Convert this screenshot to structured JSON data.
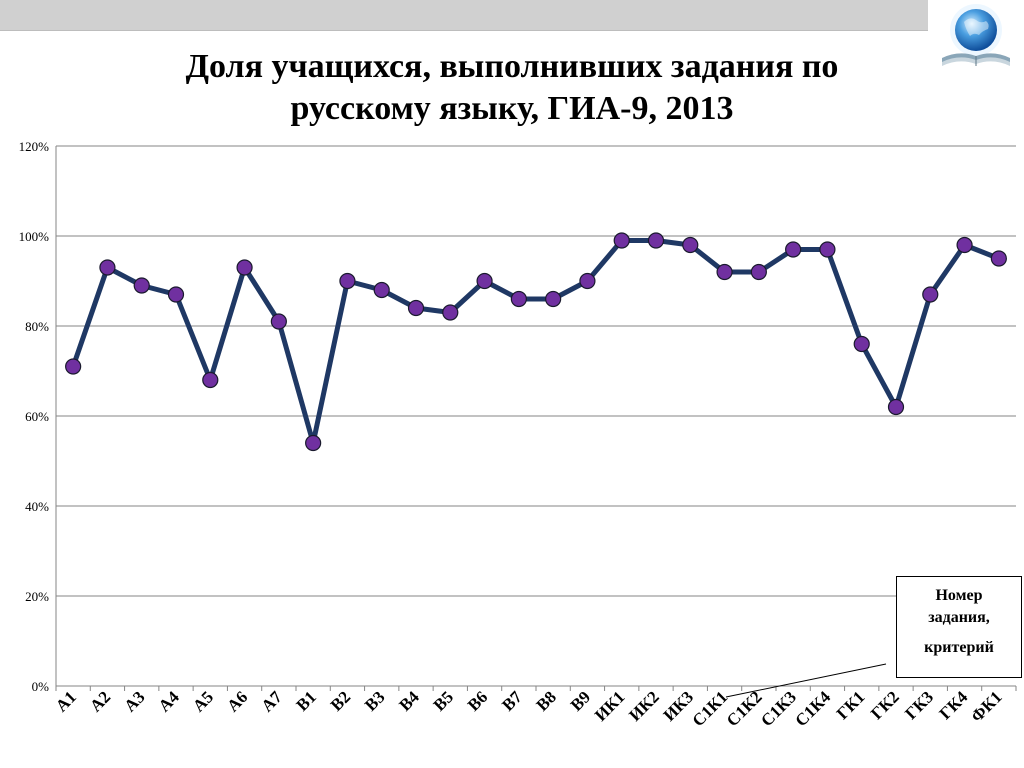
{
  "title_line1": "Доля учащихся, выполнивших задания по",
  "title_line2": "русскому языку, ГИА-9, 2013",
  "annotation": {
    "line1": "Номер",
    "line2": "задания,",
    "line3": "критерий"
  },
  "colors": {
    "line": "#1f3864",
    "marker": "#7030a0",
    "grid": "#868686",
    "top_bar": "#d0d0d0"
  },
  "chart_data": {
    "type": "line",
    "title": "Доля учащихся, выполнивших задания по русскому языку, ГИА-9, 2013",
    "xlabel": "",
    "ylabel": "",
    "ylim": [
      0,
      120
    ],
    "yticks": [
      "0%",
      "20%",
      "40%",
      "60%",
      "80%",
      "100%",
      "120%"
    ],
    "grid": true,
    "categories": [
      "А1",
      "А2",
      "А3",
      "А4",
      "А5",
      "А6",
      "А7",
      "В1",
      "В2",
      "В3",
      "В4",
      "В5",
      "В6",
      "В7",
      "В8",
      "В9",
      "ИК1",
      "ИК2",
      "ИК3",
      "С1К1",
      "С1К2",
      "С1К3",
      "С1К4",
      "ГК1",
      "ГК2",
      "ГК3",
      "ГК4",
      "ФК1"
    ],
    "series": [
      {
        "values": [
          71,
          93,
          89,
          87,
          68,
          93,
          81,
          54,
          90,
          88,
          84,
          83,
          90,
          86,
          86,
          90,
          99,
          99,
          98,
          92,
          92,
          97,
          97,
          76,
          62,
          87,
          98,
          95
        ]
      }
    ]
  }
}
